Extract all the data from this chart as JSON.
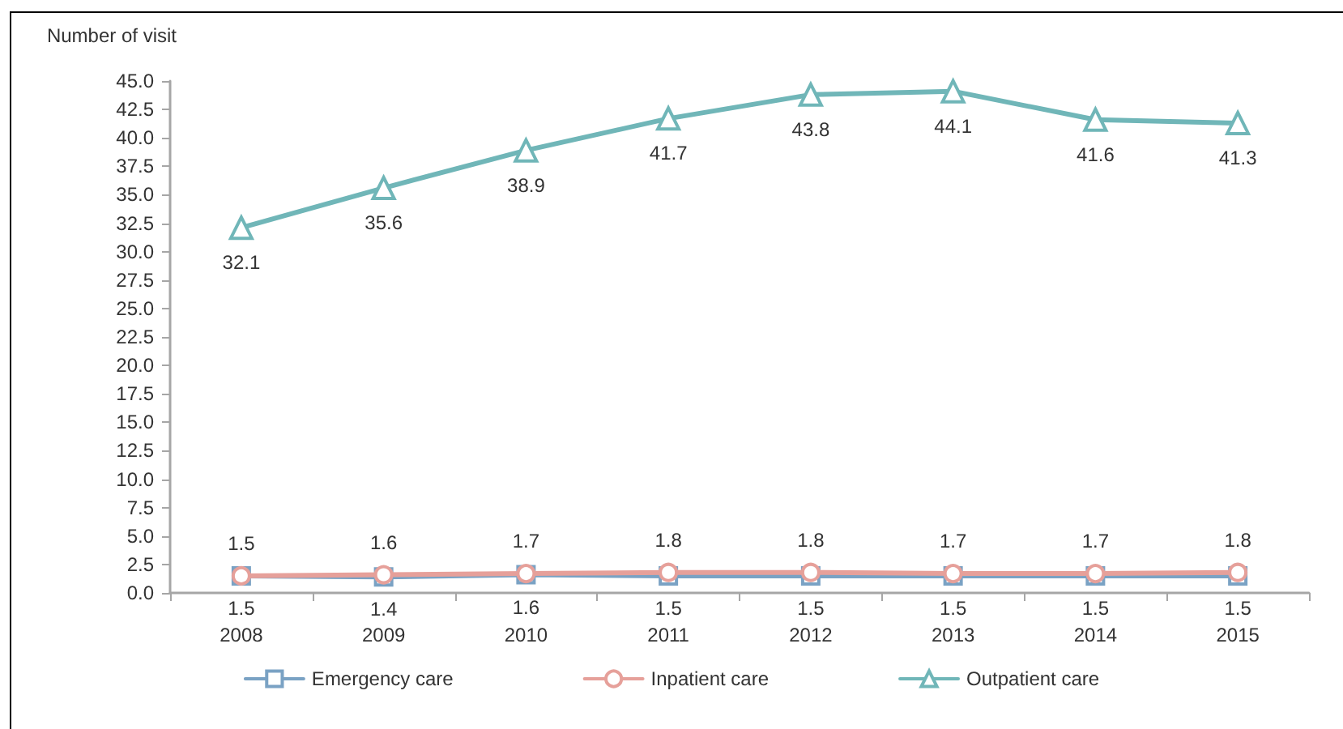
{
  "chart_data": {
    "type": "line",
    "ylabel": "Number of visit",
    "categories": [
      "2008",
      "2009",
      "2010",
      "2011",
      "2012",
      "2013",
      "2014",
      "2015"
    ],
    "series": [
      {
        "name": "Emergency care",
        "color": "#7aa2c4",
        "marker": "square",
        "values": [
          1.5,
          1.4,
          1.6,
          1.5,
          1.5,
          1.5,
          1.5,
          1.5
        ]
      },
      {
        "name": "Inpatient care",
        "color": "#e6a09a",
        "marker": "circle",
        "values": [
          1.5,
          1.6,
          1.7,
          1.8,
          1.8,
          1.7,
          1.7,
          1.8
        ]
      },
      {
        "name": "Outpatient care",
        "color": "#70b6b8",
        "marker": "triangle",
        "values": [
          32.1,
          35.6,
          38.9,
          41.7,
          43.8,
          44.1,
          41.6,
          41.3
        ]
      }
    ],
    "ylim": [
      0,
      45
    ],
    "yticks": [
      {
        "value": 0,
        "label": "0.0"
      },
      {
        "value": 2.5,
        "label": "2.5"
      },
      {
        "value": 5,
        "label": "5.0"
      },
      {
        "value": 7.5,
        "label": "7.5"
      },
      {
        "value": 10,
        "label": "10.0"
      },
      {
        "value": 12.5,
        "label": "12.5"
      },
      {
        "value": 15,
        "label": "15.0"
      },
      {
        "value": 17.5,
        "label": "17.5"
      },
      {
        "value": 20,
        "label": "20.0"
      },
      {
        "value": 22.5,
        "label": "22.5"
      },
      {
        "value": 25,
        "label": "25.0"
      },
      {
        "value": 27.5,
        "label": "27.5"
      },
      {
        "value": 30,
        "label": "30.0"
      },
      {
        "value": 32.5,
        "label": "32.5"
      },
      {
        "value": 35,
        "label": "35.0"
      },
      {
        "value": 37.5,
        "label": "37.5"
      },
      {
        "value": 40,
        "label": "40.0"
      },
      {
        "value": 42.5,
        "label": "42.5"
      },
      {
        "value": 45,
        "label": "45.0"
      }
    ],
    "grid": false,
    "legend": "bottom",
    "line_style": "solid",
    "data_labels": true
  }
}
